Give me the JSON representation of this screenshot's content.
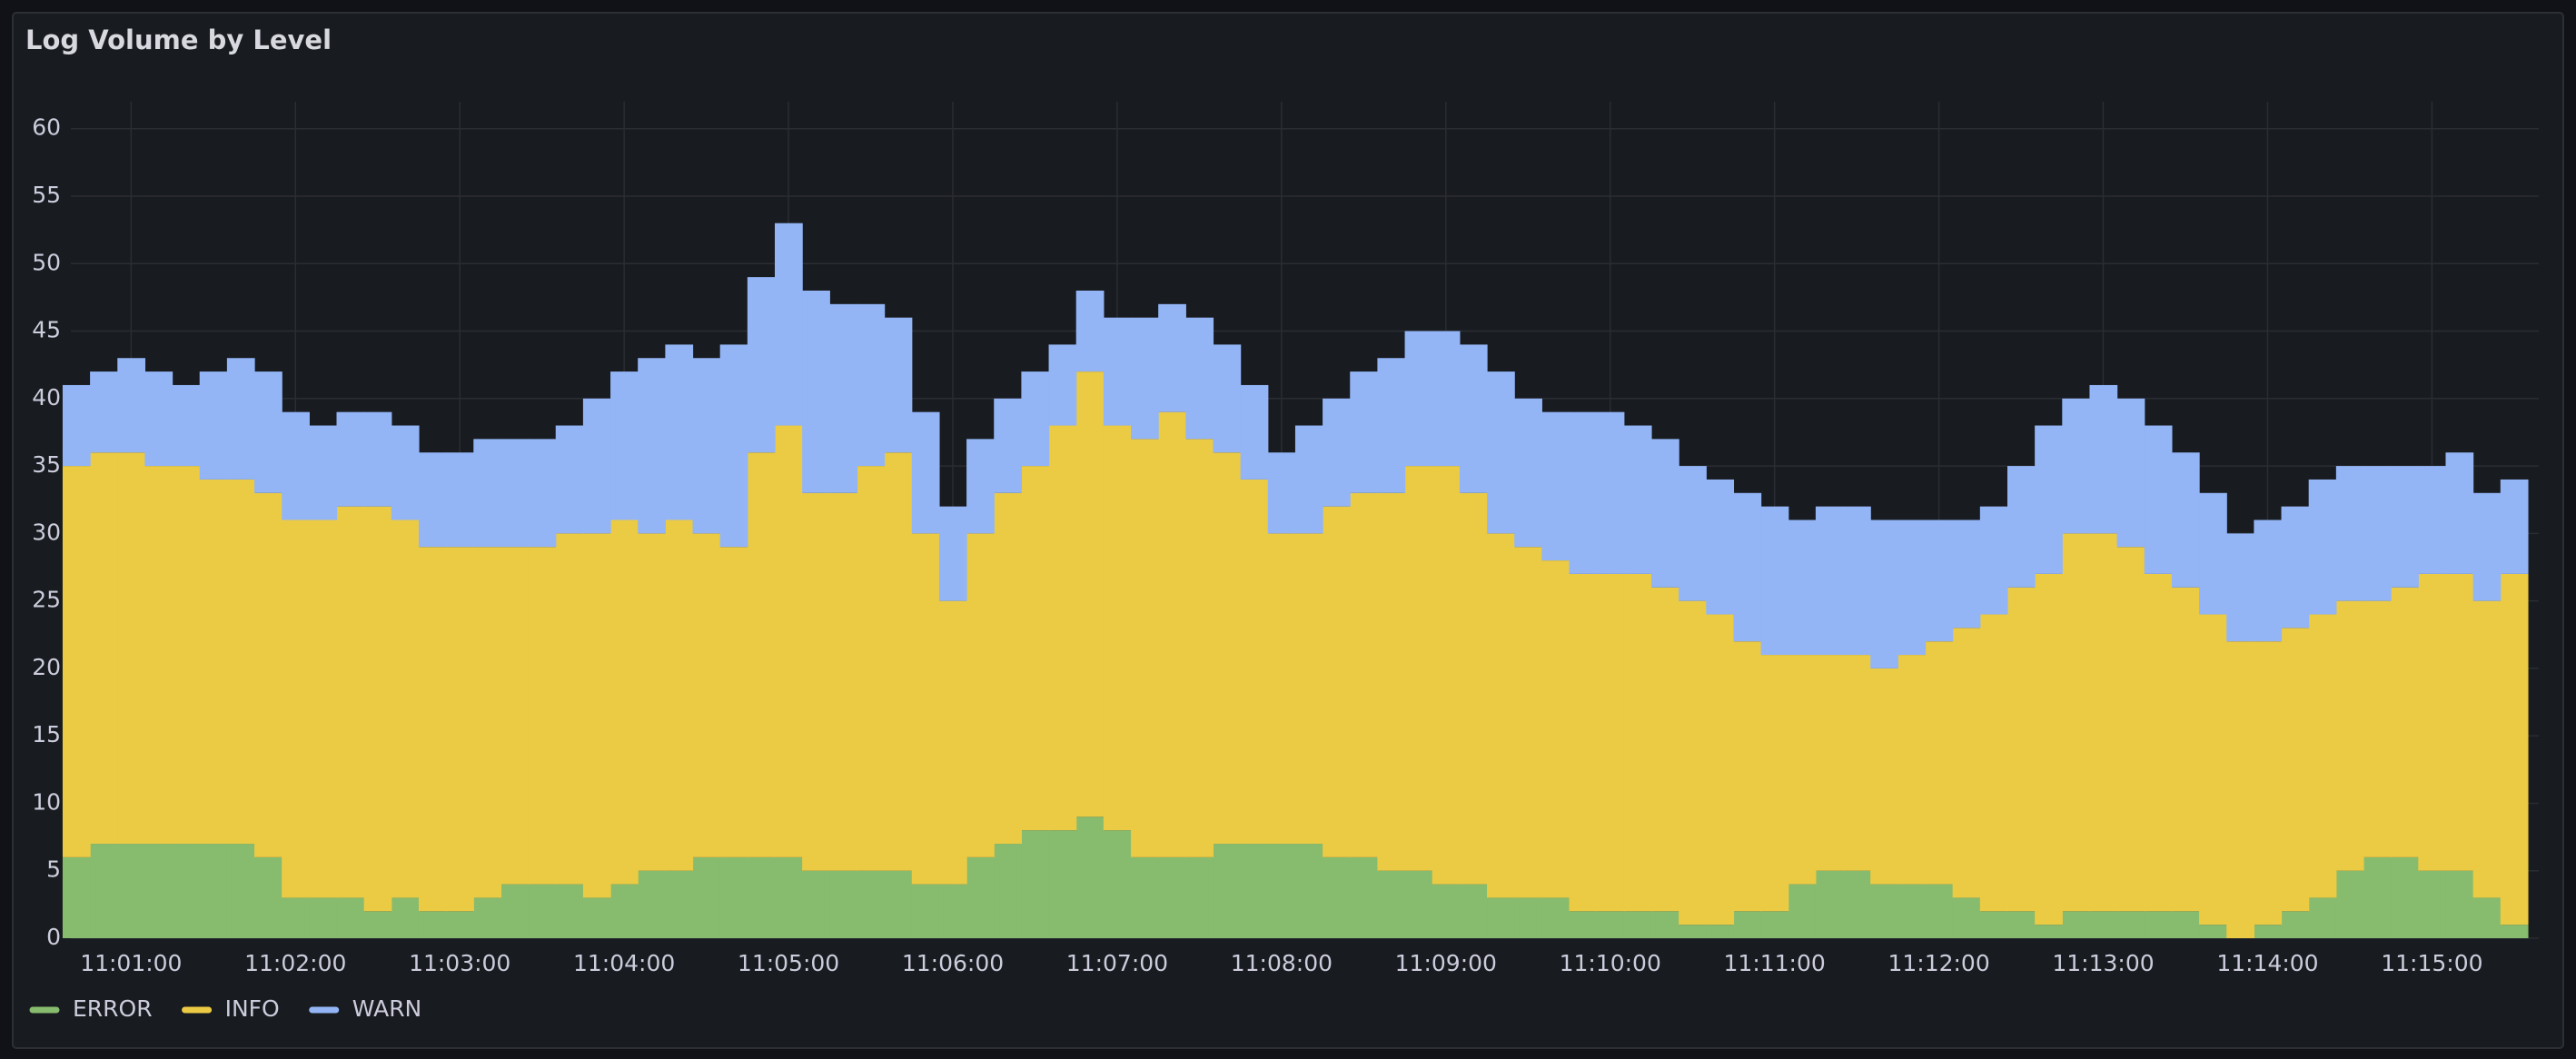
{
  "chart_data": {
    "type": "bar",
    "stacked": true,
    "title": "Log Volume by Level",
    "x": [
      "11:00:40",
      "11:00:50",
      "11:01:00",
      "11:01:10",
      "11:01:20",
      "11:01:30",
      "11:01:40",
      "11:01:50",
      "11:02:00",
      "11:02:10",
      "11:02:20",
      "11:02:30",
      "11:02:40",
      "11:02:50",
      "11:03:00",
      "11:03:10",
      "11:03:20",
      "11:03:30",
      "11:03:40",
      "11:03:50",
      "11:04:00",
      "11:04:10",
      "11:04:20",
      "11:04:30",
      "11:04:40",
      "11:04:50",
      "11:05:00",
      "11:05:10",
      "11:05:20",
      "11:05:30",
      "11:05:40",
      "11:05:50",
      "11:06:00",
      "11:06:10",
      "11:06:20",
      "11:06:30",
      "11:06:40",
      "11:06:50",
      "11:07:00",
      "11:07:10",
      "11:07:20",
      "11:07:30",
      "11:07:40",
      "11:07:50",
      "11:08:00",
      "11:08:10",
      "11:08:20",
      "11:08:30",
      "11:08:40",
      "11:08:50",
      "11:09:00",
      "11:09:10",
      "11:09:20",
      "11:09:30",
      "11:09:40",
      "11:09:50",
      "11:10:00",
      "11:10:10",
      "11:10:20",
      "11:10:30",
      "11:10:40",
      "11:10:50",
      "11:11:00",
      "11:11:10",
      "11:11:20",
      "11:11:30",
      "11:11:40",
      "11:11:50",
      "11:12:00",
      "11:12:10",
      "11:12:20",
      "11:12:30",
      "11:12:40",
      "11:12:50",
      "11:13:00",
      "11:13:10",
      "11:13:20",
      "11:13:30",
      "11:13:40",
      "11:13:50",
      "11:14:00",
      "11:14:10",
      "11:14:20",
      "11:14:30",
      "11:14:40",
      "11:14:50",
      "11:15:00",
      "11:15:10",
      "11:15:20",
      "11:15:30"
    ],
    "xlim": [
      "11:00:38",
      "11:15:39"
    ],
    "xticks": [
      "11:01:00",
      "11:02:00",
      "11:03:00",
      "11:04:00",
      "11:05:00",
      "11:06:00",
      "11:07:00",
      "11:08:00",
      "11:09:00",
      "11:10:00",
      "11:11:00",
      "11:12:00",
      "11:13:00",
      "11:14:00",
      "11:15:00"
    ],
    "ylim": [
      0,
      62
    ],
    "yticks": [
      0,
      5,
      10,
      15,
      20,
      25,
      30,
      35,
      40,
      45,
      50,
      55,
      60
    ],
    "grid": true,
    "legend": "bottom-left",
    "series": [
      {
        "name": "ERROR",
        "color": "#87bb6e",
        "values": [
          6,
          7,
          7,
          7,
          7,
          7,
          7,
          6,
          3,
          3,
          3,
          2,
          3,
          2,
          2,
          3,
          4,
          4,
          4,
          3,
          4,
          5,
          5,
          6,
          6,
          6,
          6,
          5,
          5,
          5,
          5,
          4,
          4,
          6,
          7,
          8,
          8,
          9,
          8,
          6,
          6,
          6,
          7,
          7,
          7,
          7,
          6,
          6,
          5,
          5,
          4,
          4,
          3,
          3,
          3,
          2,
          2,
          2,
          2,
          1,
          1,
          2,
          2,
          4,
          5,
          5,
          4,
          4,
          4,
          3,
          2,
          2,
          1,
          2,
          2,
          2,
          2,
          2,
          1,
          0,
          1,
          2,
          3,
          5,
          6,
          6,
          5,
          5,
          3,
          1
        ]
      },
      {
        "name": "INFO",
        "color": "#ebca44",
        "values": [
          29,
          29,
          29,
          28,
          28,
          27,
          27,
          27,
          28,
          28,
          29,
          30,
          28,
          27,
          27,
          26,
          25,
          25,
          26,
          27,
          27,
          25,
          26,
          24,
          23,
          30,
          32,
          28,
          28,
          30,
          31,
          26,
          21,
          24,
          26,
          27,
          30,
          33,
          30,
          31,
          33,
          31,
          29,
          27,
          23,
          23,
          26,
          27,
          28,
          30,
          31,
          29,
          27,
          26,
          25,
          25,
          25,
          25,
          24,
          24,
          23,
          20,
          19,
          17,
          16,
          16,
          16,
          17,
          18,
          20,
          22,
          24,
          26,
          28,
          28,
          27,
          25,
          24,
          23,
          22,
          21,
          21,
          21,
          20,
          19,
          20,
          22,
          22,
          22,
          26
        ]
      },
      {
        "name": "WARN",
        "color": "#93b5f6",
        "values": [
          6,
          6,
          7,
          7,
          6,
          8,
          9,
          9,
          8,
          7,
          7,
          7,
          7,
          7,
          7,
          8,
          8,
          8,
          8,
          10,
          11,
          13,
          13,
          13,
          15,
          13,
          15,
          15,
          14,
          12,
          10,
          9,
          7,
          7,
          7,
          7,
          6,
          6,
          8,
          9,
          8,
          9,
          8,
          7,
          6,
          8,
          8,
          9,
          10,
          10,
          10,
          11,
          12,
          11,
          11,
          12,
          12,
          11,
          11,
          10,
          10,
          11,
          11,
          10,
          11,
          11,
          11,
          10,
          9,
          8,
          8,
          9,
          11,
          10,
          11,
          11,
          11,
          10,
          9,
          8,
          9,
          9,
          10,
          10,
          10,
          9,
          8,
          9,
          8,
          7
        ]
      }
    ]
  }
}
